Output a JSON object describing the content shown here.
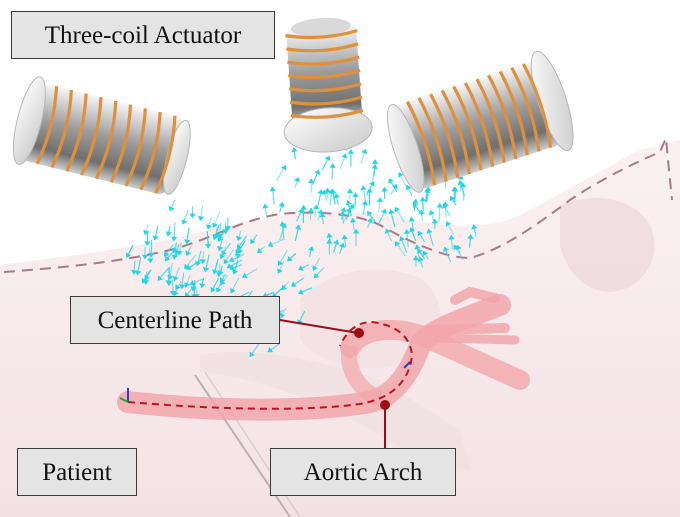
{
  "labels": {
    "actuator": "Three-coil Actuator",
    "centerline": "Centerline Path",
    "patient": "Patient",
    "arch": "Aortic Arch"
  },
  "colors": {
    "coil_wire": "#e0903a",
    "coil_body": "#bdbdbd",
    "field_arrows": "#22d6ea",
    "vessel": "#f2a6ab",
    "centerline": "#c0141c",
    "pointer": "#a00d14",
    "patient_outline": "#a77b86",
    "patient_body": "#f6e7e8"
  },
  "icons": [
    "coil-icon",
    "field-arrow-icon",
    "pointer-dot-icon"
  ]
}
